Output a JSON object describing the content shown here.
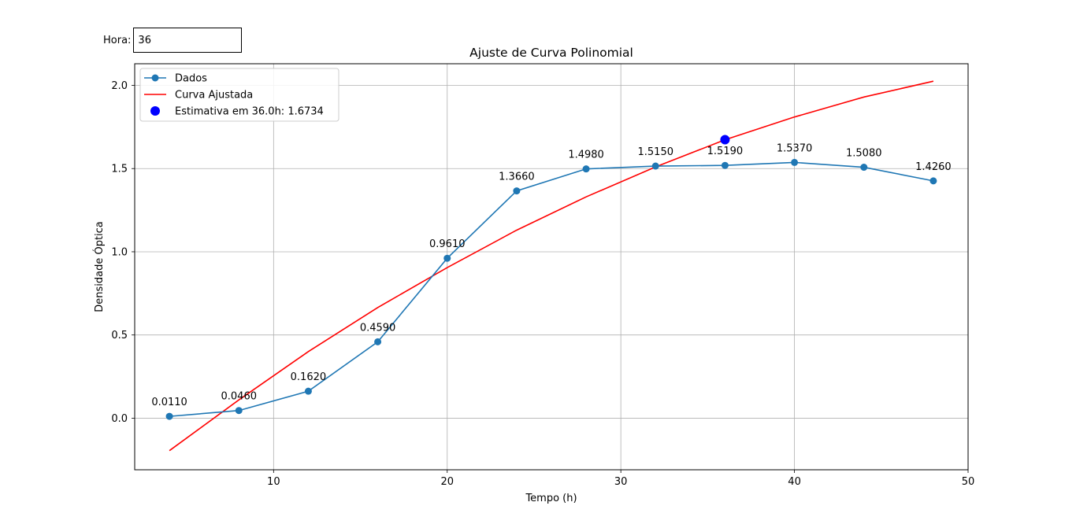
{
  "control": {
    "hora_label": "Hora:",
    "hora_value": "36"
  },
  "chart_data": {
    "type": "line",
    "title": "Ajuste de Curva Polinomial",
    "xlabel": "Tempo (h)",
    "ylabel": "Densidade Óptica",
    "xlim": [
      2,
      50
    ],
    "ylim": [
      -0.31,
      2.13
    ],
    "xticks": [
      10,
      20,
      30,
      40,
      50
    ],
    "yticks": [
      0.0,
      0.5,
      1.0,
      1.5,
      2.0
    ],
    "xtick_labels": [
      "10",
      "20",
      "30",
      "40",
      "50"
    ],
    "ytick_labels": [
      "0.0",
      "0.5",
      "1.0",
      "1.5",
      "2.0"
    ],
    "grid": true,
    "legend_position": "top-left",
    "series": [
      {
        "name": "Dados",
        "style": "line-markers",
        "color": "#1f77b4",
        "x": [
          4,
          8,
          12,
          16,
          20,
          24,
          28,
          32,
          36,
          40,
          44,
          48
        ],
        "y": [
          0.011,
          0.046,
          0.162,
          0.459,
          0.961,
          1.366,
          1.498,
          1.515,
          1.519,
          1.537,
          1.508,
          1.426
        ],
        "labels": [
          "0.0110",
          "0.0460",
          "0.1620",
          "0.4590",
          "0.9610",
          "1.3660",
          "1.4980",
          "1.5150",
          "1.5190",
          "1.5370",
          "1.5080",
          "1.4260"
        ]
      },
      {
        "name": "Curva Ajustada",
        "style": "line",
        "color": "#ff0000",
        "x": [
          4,
          8,
          12,
          16,
          20,
          24,
          28,
          32,
          36,
          40,
          44,
          48
        ],
        "y": [
          -0.195,
          0.11,
          0.4,
          0.665,
          0.905,
          1.13,
          1.33,
          1.51,
          1.673,
          1.81,
          1.93,
          2.025
        ]
      },
      {
        "name": "Estimativa em 36.0h: 1.6734",
        "style": "point",
        "color": "#0000ff",
        "x": [
          36
        ],
        "y": [
          1.6734
        ]
      }
    ]
  }
}
